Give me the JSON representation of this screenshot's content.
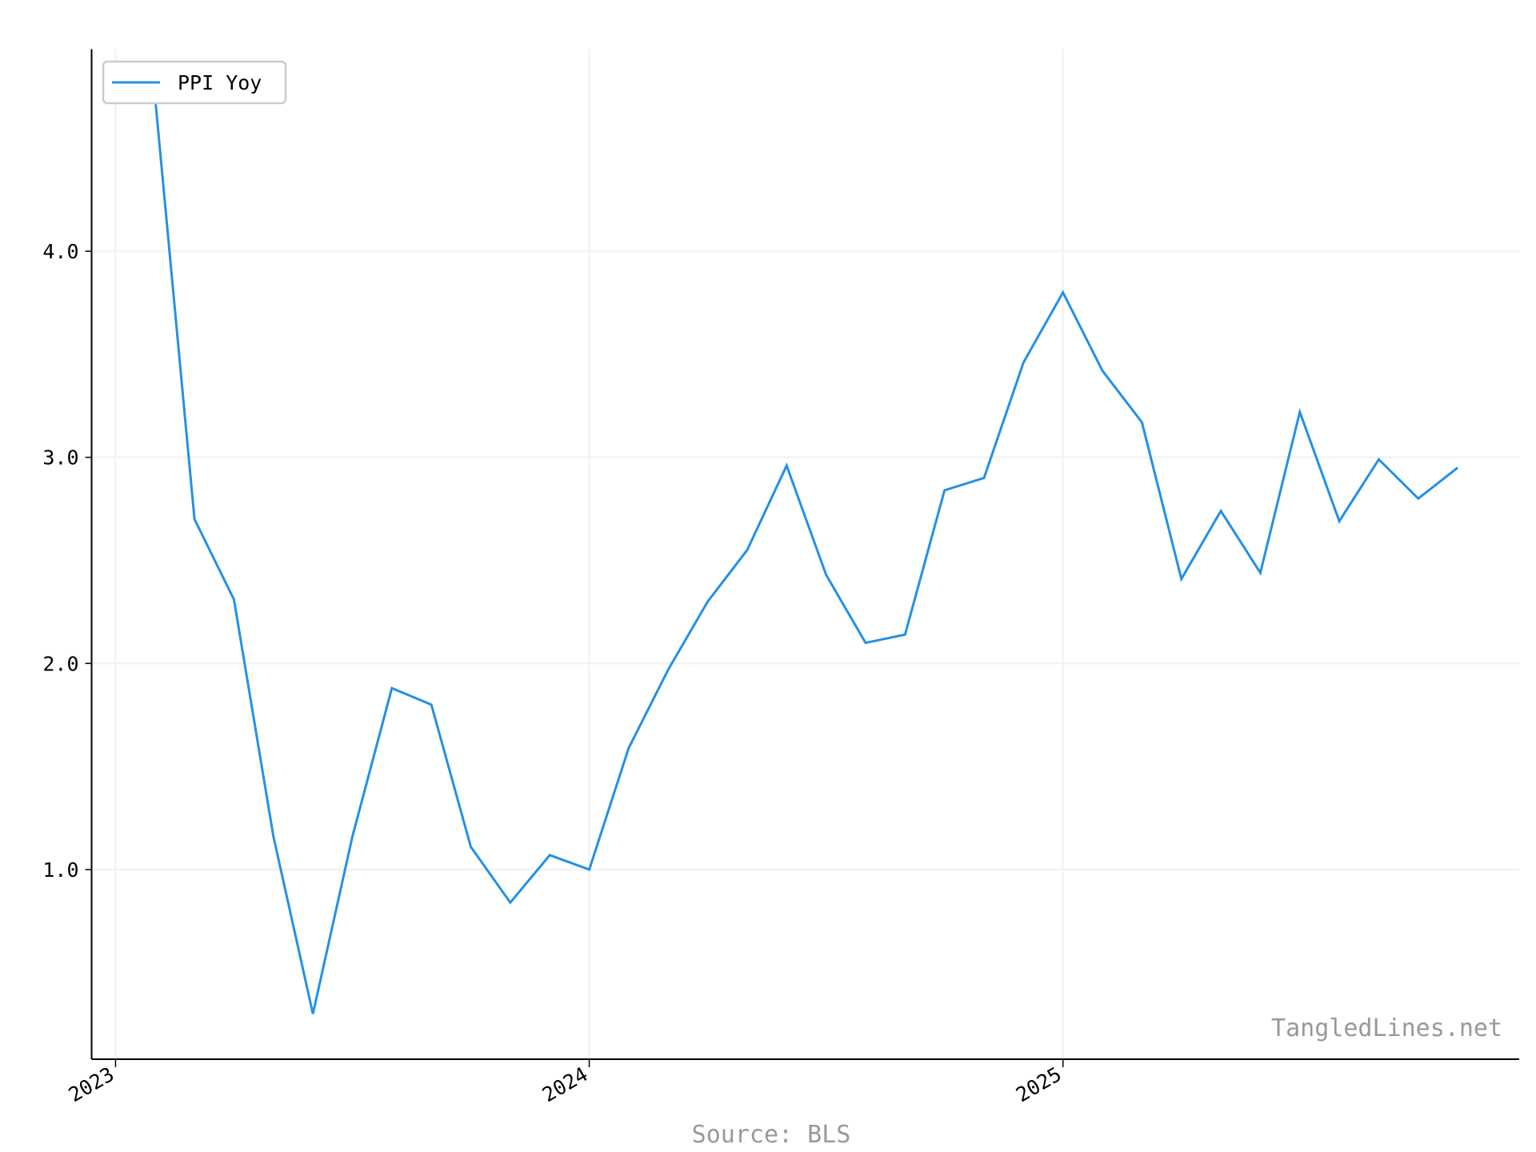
{
  "chart_data": {
    "type": "line",
    "x": [
      "2023-02",
      "2023-03",
      "2023-04",
      "2023-05",
      "2023-06",
      "2023-07",
      "2023-08",
      "2023-09",
      "2023-10",
      "2023-11",
      "2023-12",
      "2024-01",
      "2024-02",
      "2024-03",
      "2024-04",
      "2024-05",
      "2024-06",
      "2024-07",
      "2024-08",
      "2024-09",
      "2024-10",
      "2024-11",
      "2024-12",
      "2025-01",
      "2025-02",
      "2025-03",
      "2025-04",
      "2025-05",
      "2025-06",
      "2025-07",
      "2025-08",
      "2025-09",
      "2025-10",
      "2025-11"
    ],
    "series": [
      {
        "name": "PPI Yoy",
        "color": "#2490e4",
        "values": [
          4.75,
          2.7,
          2.31,
          1.16,
          0.3,
          1.16,
          1.88,
          1.8,
          1.11,
          0.84,
          1.07,
          1.0,
          1.59,
          1.97,
          2.3,
          2.55,
          2.96,
          2.43,
          2.1,
          2.14,
          2.84,
          2.9,
          3.46,
          3.8,
          3.42,
          3.17,
          2.41,
          2.74,
          2.44,
          3.22,
          2.69,
          2.99,
          2.8,
          2.95
        ]
      }
    ],
    "xlim": [
      "2022-12-13",
      "2025-12-18"
    ],
    "xticks": [
      {
        "value": "2023-01",
        "label": "2023"
      },
      {
        "value": "2024-01",
        "label": "2024"
      },
      {
        "value": "2025-01",
        "label": "2025"
      }
    ],
    "ylim": [
      0.08,
      4.98
    ],
    "yticks": [
      {
        "value": 1,
        "label": "1.0"
      },
      {
        "value": 2,
        "label": "2.0"
      },
      {
        "value": 3,
        "label": "3.0"
      },
      {
        "value": 4,
        "label": "4.0"
      }
    ],
    "grid": true,
    "legend": "upper left",
    "watermark": "TangledLines.net",
    "source": "Source: BLS"
  }
}
